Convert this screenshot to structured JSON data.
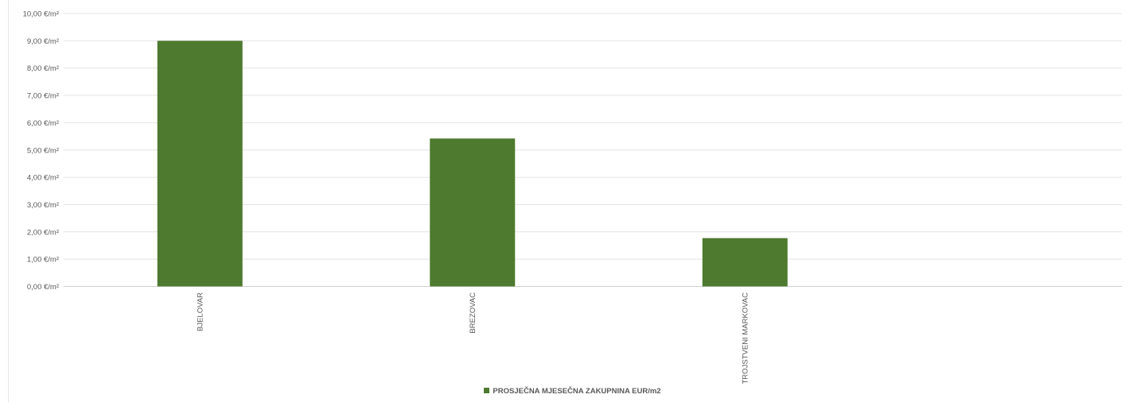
{
  "chart_data": {
    "type": "bar",
    "categories": [
      "BJELOVAR",
      "BREZOVAC",
      "TROJSTVENI MARKOVAC"
    ],
    "series": [
      {
        "name": "PROSJEČNA MJESEČNA ZAKUPNINA EUR/m2",
        "values": [
          9.0,
          5.42,
          1.77
        ],
        "color": "#4e7a2f"
      }
    ],
    "ylim": [
      0,
      10
    ],
    "y_ticks": [
      "0,00 €/m²",
      "1,00 €/m²",
      "2,00 €/m²",
      "3,00 €/m²",
      "4,00 €/m²",
      "5,00 €/m²",
      "6,00 €/m²",
      "7,00 €/m²",
      "8,00 €/m²",
      "9,00 €/m²",
      "10,00 €/m²"
    ],
    "grid": true,
    "legend_position": "bottom",
    "title": "",
    "xlabel": "",
    "ylabel": ""
  }
}
